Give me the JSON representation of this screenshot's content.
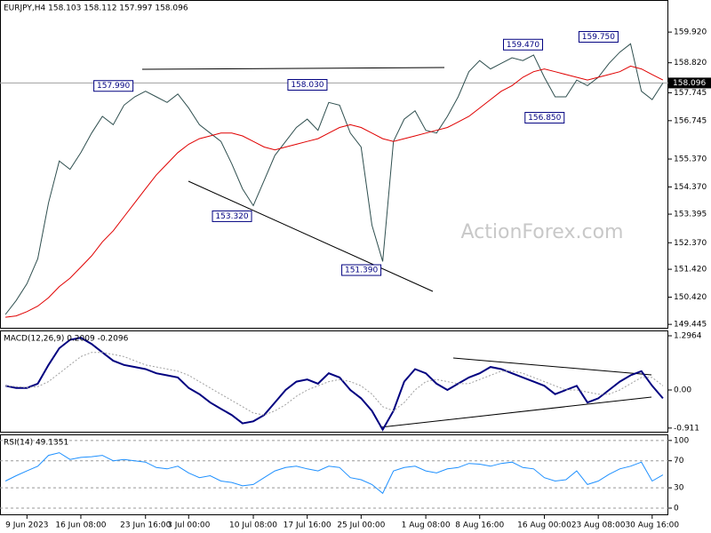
{
  "chart_data": [
    {
      "type": "line",
      "title": "EURJPY,H4 158.103 158.112 157.997 158.096",
      "watermark": "ActionForex.com",
      "xlim": [
        -0.5,
        61.5
      ],
      "ylim": [
        149.29,
        161.07
      ],
      "yticks": [
        {
          "value": 159.92,
          "label": "159.920"
        },
        {
          "value": 158.82,
          "label": "158.820"
        },
        {
          "value": 157.745,
          "label": "157.745"
        },
        {
          "value": 156.745,
          "label": "156.745"
        },
        {
          "value": 155.37,
          "label": "155.370"
        },
        {
          "value": 154.37,
          "label": "154.370"
        },
        {
          "value": 153.395,
          "label": "153.395"
        },
        {
          "value": 152.37,
          "label": "152.370"
        },
        {
          "value": 151.42,
          "label": "151.420"
        },
        {
          "value": 150.42,
          "label": "150.420"
        },
        {
          "value": 149.445,
          "label": "149.445"
        }
      ],
      "last": {
        "value": 158.096,
        "label": "158.096"
      },
      "series": [
        {
          "color": "#2f4f4f",
          "values": [
            149.8,
            150.3,
            150.9,
            151.8,
            153.8,
            155.3,
            155.0,
            155.6,
            156.3,
            156.9,
            156.6,
            157.3,
            157.6,
            157.8,
            157.6,
            157.4,
            157.7,
            157.2,
            156.6,
            156.3,
            156.0,
            155.2,
            154.3,
            153.7,
            154.6,
            155.5,
            156.0,
            156.5,
            156.8,
            156.4,
            157.4,
            157.3,
            156.3,
            155.8,
            153.0,
            151.7,
            156.0,
            156.8,
            157.1,
            156.4,
            156.3,
            156.9,
            157.6,
            158.5,
            158.9,
            158.6,
            158.8,
            159.0,
            158.9,
            159.1,
            158.3,
            157.6,
            157.6,
            158.2,
            158.0,
            158.3,
            158.8,
            159.2,
            159.5,
            157.8,
            157.5,
            158.096
          ]
        },
        {
          "color": "#e00000",
          "values": [
            149.7,
            149.75,
            149.9,
            150.1,
            150.4,
            150.8,
            151.1,
            151.5,
            151.9,
            152.4,
            152.8,
            153.3,
            153.8,
            154.3,
            154.8,
            155.2,
            155.6,
            155.9,
            156.1,
            156.2,
            156.3,
            156.3,
            156.2,
            156.0,
            155.8,
            155.7,
            155.8,
            155.9,
            156.0,
            156.1,
            156.3,
            156.5,
            156.6,
            156.5,
            156.3,
            156.1,
            156.0,
            156.1,
            156.2,
            156.3,
            156.4,
            156.5,
            156.7,
            156.9,
            157.2,
            157.5,
            157.8,
            158.0,
            158.3,
            158.5,
            158.6,
            158.5,
            158.4,
            158.3,
            158.2,
            158.3,
            158.4,
            158.5,
            158.7,
            158.6,
            158.4,
            158.2
          ]
        }
      ],
      "annotations": [
        {
          "x": 12,
          "y": 157.99,
          "label": "157.990"
        },
        {
          "x": 30,
          "y": 158.03,
          "label": "158.030"
        },
        {
          "x": 50,
          "y": 159.47,
          "label": "159.470"
        },
        {
          "x": 57,
          "y": 159.75,
          "label": "159.750"
        },
        {
          "x": 52,
          "y": 156.85,
          "label": "156.850"
        },
        {
          "x": 23,
          "y": 153.32,
          "label": "153.320"
        },
        {
          "x": 35,
          "y": 151.39,
          "label": "151.390"
        }
      ]
    },
    {
      "type": "line",
      "title": "MACD(12,26,9) 0.2009 -0.2096",
      "xlim": [
        -0.5,
        61.5
      ],
      "ylim": [
        -1.02,
        1.424
      ],
      "yticks": [
        1.2964,
        {
          "value": 0,
          "label": "0.00"
        },
        -0.911
      ],
      "series": [
        {
          "color": "#000080",
          "values": [
            0.1,
            0.05,
            0.05,
            0.15,
            0.6,
            1.0,
            1.2,
            1.25,
            1.1,
            0.9,
            0.7,
            0.6,
            0.55,
            0.5,
            0.4,
            0.35,
            0.3,
            0.05,
            -0.1,
            -0.3,
            -0.45,
            -0.6,
            -0.8,
            -0.75,
            -0.6,
            -0.3,
            0,
            0.2,
            0.25,
            0.15,
            0.4,
            0.3,
            0.0,
            -0.2,
            -0.5,
            -0.95,
            -0.5,
            0.2,
            0.5,
            0.4,
            0.15,
            0.0,
            0.15,
            0.3,
            0.4,
            0.55,
            0.5,
            0.4,
            0.3,
            0.2,
            0.1,
            -0.1,
            0.0,
            0.1,
            -0.3,
            -0.2,
            0.0,
            0.2,
            0.35,
            0.45,
            0.1,
            -0.2
          ]
        },
        {
          "color": "#a0a0a0",
          "values": [
            0.1,
            0.08,
            0.06,
            0.08,
            0.2,
            0.4,
            0.6,
            0.8,
            0.9,
            0.9,
            0.85,
            0.8,
            0.7,
            0.6,
            0.55,
            0.5,
            0.45,
            0.35,
            0.2,
            0.05,
            -0.1,
            -0.25,
            -0.4,
            -0.55,
            -0.6,
            -0.5,
            -0.35,
            -0.15,
            0.0,
            0.1,
            0.2,
            0.25,
            0.2,
            0.1,
            -0.1,
            -0.4,
            -0.5,
            -0.3,
            0.0,
            0.2,
            0.25,
            0.2,
            0.15,
            0.15,
            0.25,
            0.35,
            0.45,
            0.45,
            0.4,
            0.3,
            0.2,
            0.1,
            0.0,
            0.0,
            -0.05,
            -0.1,
            -0.1,
            0.0,
            0.15,
            0.3,
            0.3,
            0.1
          ]
        }
      ]
    },
    {
      "type": "line",
      "title": "RSI(14) 49.1351",
      "xlim": [
        -0.5,
        61.5
      ],
      "ylim": [
        -10.5,
        109
      ],
      "grid": true,
      "yticks": [
        100,
        70,
        30,
        0
      ],
      "xticks": [
        {
          "value": 2,
          "label": "9 Jun 2023"
        },
        {
          "value": 7,
          "label": "16 Jun 08:00"
        },
        {
          "value": 13,
          "label": "23 Jun 16:00"
        },
        {
          "value": 17,
          "label": "3 Jul 00:00"
        },
        {
          "value": 23,
          "label": "10 Jul 08:00"
        },
        {
          "value": 28,
          "label": "17 Jul 16:00"
        },
        {
          "value": 33,
          "label": "25 Jul 00:00"
        },
        {
          "value": 39,
          "label": "1 Aug 08:00"
        },
        {
          "value": 44,
          "label": "8 Aug 16:00"
        },
        {
          "value": 50,
          "label": "16 Aug 00:00"
        },
        {
          "value": 55,
          "label": "23 Aug 08:00"
        },
        {
          "value": 60,
          "label": "30 Aug 16:00"
        }
      ],
      "series": [
        {
          "color": "#1e90ff",
          "values": [
            40,
            48,
            55,
            62,
            78,
            82,
            72,
            75,
            76,
            78,
            70,
            72,
            70,
            68,
            60,
            58,
            62,
            52,
            45,
            48,
            40,
            38,
            33,
            35,
            45,
            55,
            60,
            62,
            58,
            55,
            62,
            60,
            45,
            42,
            35,
            22,
            55,
            60,
            62,
            55,
            52,
            58,
            60,
            66,
            65,
            62,
            66,
            68,
            60,
            58,
            45,
            40,
            42,
            55,
            35,
            40,
            50,
            58,
            62,
            68,
            40,
            49.1351
          ]
        }
      ]
    }
  ]
}
